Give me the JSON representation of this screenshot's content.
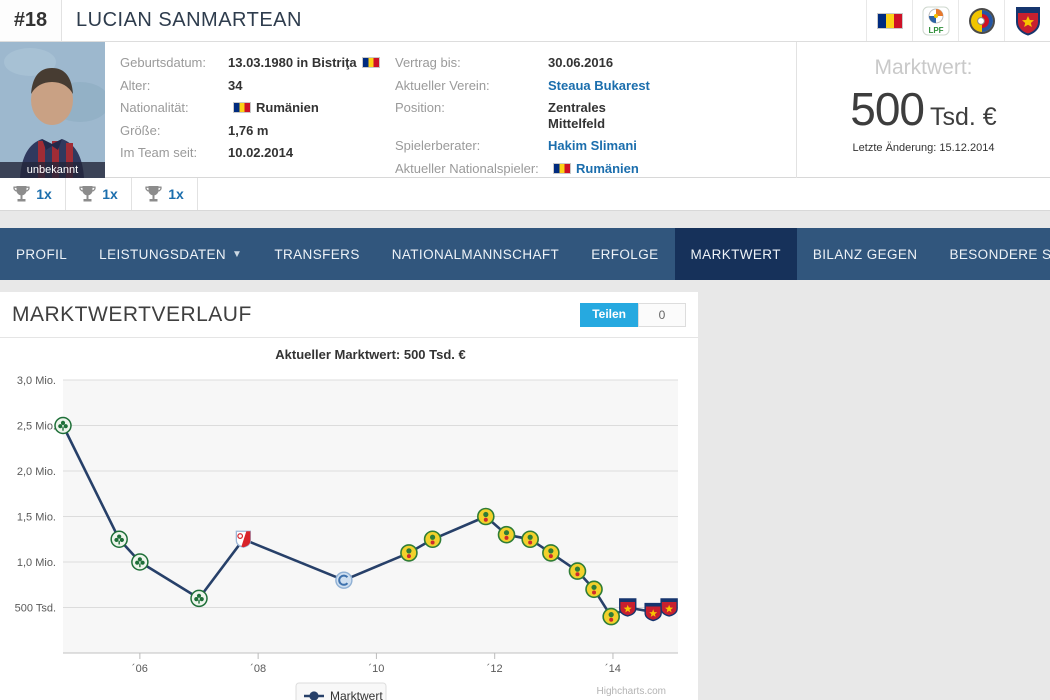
{
  "header": {
    "shirt_number": "#18",
    "player_name": "LUCIAN SANMARTEAN",
    "badges": [
      {
        "icon": "flag-romania"
      },
      {
        "icon": "lpf-league-logo"
      },
      {
        "icon": "frf-federation-logo"
      },
      {
        "icon": "steaua-crest"
      }
    ]
  },
  "info": {
    "photo_caption": "unbekannt",
    "left": [
      {
        "label": "Geburtsdatum:",
        "value": "13.03.1980 in Bistriţa",
        "flag": "after",
        "link": false
      },
      {
        "label": "Alter:",
        "value": "34",
        "flag": null,
        "link": false
      },
      {
        "label": "Nationalität:",
        "value": "Rumänien",
        "flag": "before",
        "link": false
      },
      {
        "label": "Größe:",
        "value": "1,76 m",
        "flag": null,
        "link": false
      },
      {
        "label": "Im Team seit:",
        "value": "10.02.2014",
        "flag": null,
        "link": false
      }
    ],
    "right": [
      {
        "label": "Vertrag bis:",
        "value": "30.06.2016",
        "flag": null,
        "link": false,
        "wrap": false
      },
      {
        "label": "Aktueller Verein:",
        "value": "Steaua Bukarest",
        "flag": null,
        "link": true,
        "wrap": false
      },
      {
        "label": "Position:",
        "value": "Zentrales Mittelfeld",
        "flag": null,
        "link": false,
        "wrap": true
      },
      {
        "label": "Spielerberater:",
        "value": "Hakim Slimani",
        "flag": null,
        "link": true,
        "wrap": false
      },
      {
        "label": "Aktueller  Nationalspieler:",
        "value": "Rumänien",
        "flag": "before",
        "link": true,
        "wrap": false
      }
    ],
    "marketvalue": {
      "label": "Marktwert:",
      "value": "500",
      "unit": "Tsd. €",
      "updated": "Letzte Änderung: 15.12.2014"
    }
  },
  "trophies": [
    {
      "count": "1x"
    },
    {
      "count": "1x"
    },
    {
      "count": "1x"
    }
  ],
  "nav": {
    "items": [
      {
        "label": "PROFIL",
        "dropdown": false,
        "active": false
      },
      {
        "label": "LEISTUNGSDATEN",
        "dropdown": true,
        "active": false
      },
      {
        "label": "TRANSFERS",
        "dropdown": false,
        "active": false
      },
      {
        "label": "NATIONALMANNSCHAFT",
        "dropdown": false,
        "active": false
      },
      {
        "label": "ERFOLGE",
        "dropdown": false,
        "active": false
      },
      {
        "label": "MARKTWERT",
        "dropdown": false,
        "active": true
      },
      {
        "label": "BILANZ GEGEN",
        "dropdown": false,
        "active": false
      },
      {
        "label": "BESONDERE SPIELE",
        "dropdown": true,
        "active": false
      }
    ]
  },
  "panel": {
    "title": "MARKTWERTVERLAUF",
    "share_label": "Teilen",
    "share_count": "0"
  },
  "chart_data": {
    "type": "line",
    "title": "Aktueller Marktwert: 500 Tsd. €",
    "legend": "Marktwert",
    "legend_position": "bottom-center",
    "credit": "Highcharts.com",
    "line_color": "#274069",
    "grid": true,
    "y_unit": "Mio. €",
    "y_range": [
      0,
      3.0
    ],
    "x_range": [
      2004.7,
      2015.1
    ],
    "y_ticks": [
      {
        "label": "3,0 Mio.",
        "value": 3.0
      },
      {
        "label": "2,5 Mio.",
        "value": 2.5
      },
      {
        "label": "2,0 Mio.",
        "value": 2.0
      },
      {
        "label": "1,5 Mio.",
        "value": 1.5
      },
      {
        "label": "1,0 Mio.",
        "value": 1.0
      },
      {
        "label": "500 Tsd.",
        "value": 0.5
      }
    ],
    "x_ticks": [
      {
        "label": "´06",
        "value": 2006
      },
      {
        "label": "´08",
        "value": 2008
      },
      {
        "label": "´10",
        "value": 2010
      },
      {
        "label": "´12",
        "value": 2012
      },
      {
        "label": "´14",
        "value": 2014
      }
    ],
    "points": [
      {
        "x": 2004.7,
        "y_mio": 2.5,
        "club": "panathinaikos"
      },
      {
        "x": 2005.65,
        "y_mio": 1.25,
        "club": "panathinaikos"
      },
      {
        "x": 2006.0,
        "y_mio": 1.0,
        "club": "panathinaikos"
      },
      {
        "x": 2007.0,
        "y_mio": 0.6,
        "club": "panathinaikos"
      },
      {
        "x": 2007.75,
        "y_mio": 1.25,
        "club": "utrecht"
      },
      {
        "x": 2009.45,
        "y_mio": 0.8,
        "club": "craiova"
      },
      {
        "x": 2010.55,
        "y_mio": 1.1,
        "club": "vaslui"
      },
      {
        "x": 2010.95,
        "y_mio": 1.25,
        "club": "vaslui"
      },
      {
        "x": 2011.85,
        "y_mio": 1.5,
        "club": "vaslui"
      },
      {
        "x": 2012.2,
        "y_mio": 1.3,
        "club": "vaslui"
      },
      {
        "x": 2012.6,
        "y_mio": 1.25,
        "club": "vaslui"
      },
      {
        "x": 2012.95,
        "y_mio": 1.1,
        "club": "vaslui"
      },
      {
        "x": 2013.4,
        "y_mio": 0.9,
        "club": "vaslui"
      },
      {
        "x": 2013.68,
        "y_mio": 0.7,
        "club": "vaslui"
      },
      {
        "x": 2013.97,
        "y_mio": 0.4,
        "club": "vaslui"
      },
      {
        "x": 2014.25,
        "y_mio": 0.5,
        "club": "steaua"
      },
      {
        "x": 2014.68,
        "y_mio": 0.45,
        "club": "steaua"
      },
      {
        "x": 2014.95,
        "y_mio": 0.5,
        "club": "steaua"
      }
    ]
  }
}
